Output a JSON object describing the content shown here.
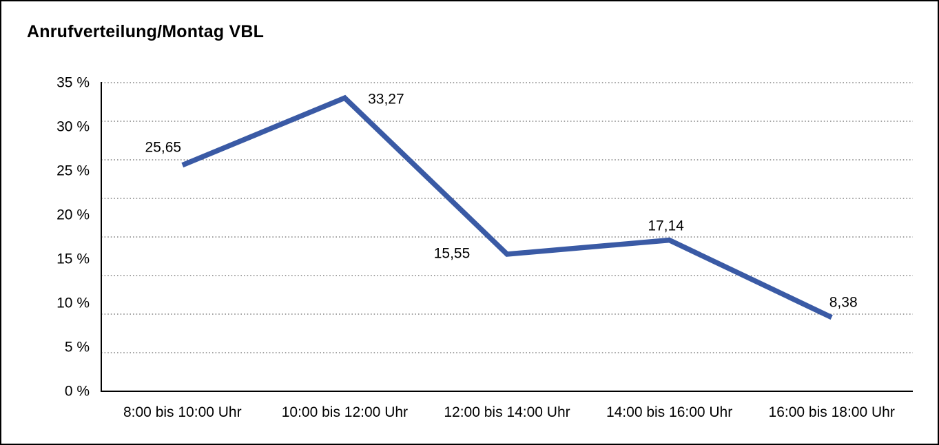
{
  "title": "Anrufverteilung/Montag VBL",
  "chart_data": {
    "type": "line",
    "title": "Anrufverteilung/Montag VBL",
    "categories": [
      "8:00 bis 10:00 Uhr",
      "10:00 bis 12:00 Uhr",
      "12:00 bis 14:00 Uhr",
      "14:00 bis 16:00 Uhr",
      "16:00 bis 18:00 Uhr"
    ],
    "values": [
      25.65,
      33.27,
      15.55,
      17.14,
      8.38
    ],
    "point_labels": [
      "25,65",
      "33,27",
      "15,55",
      "17,14",
      "8,38"
    ],
    "xlabel": "",
    "ylabel": "",
    "ylim": [
      0,
      35
    ],
    "ytick_labels": [
      "35 %",
      "30 %",
      "25 %",
      "20 %",
      "15 %",
      "10 %",
      "5 %",
      "0 %"
    ],
    "grid": "horizontal-dotted",
    "legend": "none",
    "line_color": "#3A5AA5",
    "axis_color": "#000000",
    "grid_color": "#444444",
    "text_color": "#000000",
    "background_color": "#FFFFFF"
  }
}
